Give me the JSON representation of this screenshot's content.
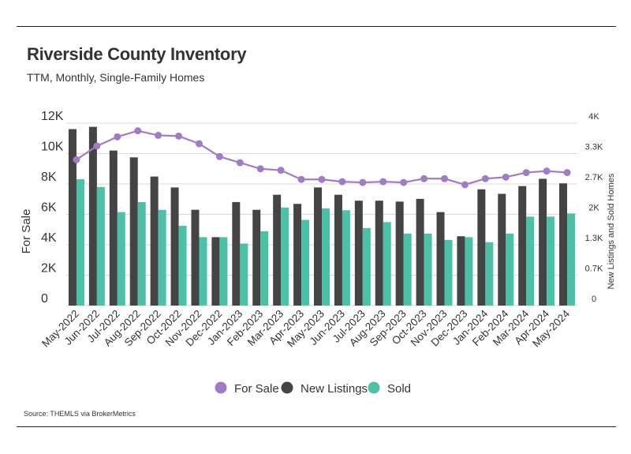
{
  "title": "Riverside County Inventory",
  "subtitle": "TTM, Monthly, Single-Family Homes",
  "source": "Source:  THEMLS via BrokerMetrics",
  "colors": {
    "for_sale": "#a07cc5",
    "new_listings": "#444444",
    "sold": "#4dc1a8"
  },
  "chart_data": {
    "type": "bar",
    "categories": [
      "May-2022",
      "Jun-2022",
      "Jul-2022",
      "Aug-2022",
      "Sep-2022",
      "Oct-2022",
      "Nov-2022",
      "Dec-2022",
      "Jan-2023",
      "Feb-2023",
      "Mar-2023",
      "Apr-2023",
      "May-2023",
      "Jun-2023",
      "Jul-2023",
      "Aug-2023",
      "Sep-2023",
      "Oct-2023",
      "Nov-2023",
      "Dec-2023",
      "Jan-2024",
      "Feb-2024",
      "Mar-2024",
      "Apr-2024",
      "May-2024"
    ],
    "left_axis": {
      "label": "For Sale",
      "ylim": [
        0,
        12000
      ],
      "ticks": [
        "0",
        "2K",
        "4K",
        "6K",
        "8K",
        "10K",
        "12K"
      ]
    },
    "right_axis": {
      "label": "New Listings and Sold Homes",
      "ylim": [
        0,
        4000
      ],
      "ticks": [
        "0",
        "0.7K",
        "1.3K",
        "2K",
        "2.7K",
        "3.3K",
        "4K"
      ]
    },
    "series": [
      {
        "name": "For Sale",
        "type": "line",
        "axis": "left",
        "values": [
          9600,
          10500,
          11100,
          11500,
          11200,
          11150,
          10650,
          9800,
          9400,
          9000,
          8900,
          8300,
          8300,
          8150,
          8100,
          8150,
          8100,
          8350,
          8350,
          7950,
          8350,
          8450,
          8750,
          8850,
          8750
        ]
      },
      {
        "name": "New Listings",
        "type": "bar",
        "axis": "right",
        "values": [
          3870,
          3920,
          3400,
          3250,
          2830,
          2590,
          2100,
          1500,
          2270,
          2100,
          2430,
          2230,
          2590,
          2430,
          2300,
          2300,
          2280,
          2340,
          2050,
          1520,
          2550,
          2450,
          2620,
          2780,
          2680
        ]
      },
      {
        "name": "Sold",
        "type": "bar",
        "axis": "right",
        "values": [
          2770,
          2600,
          2050,
          2270,
          2100,
          1750,
          1500,
          1500,
          1360,
          1630,
          2150,
          1880,
          2130,
          2090,
          1700,
          1830,
          1580,
          1580,
          1440,
          1500,
          1390,
          1580,
          1950,
          1950,
          2020
        ]
      }
    ],
    "legend": {
      "position": "bottom-center",
      "entries": [
        "For Sale",
        "New Listings",
        "Sold"
      ]
    },
    "grid": true
  }
}
